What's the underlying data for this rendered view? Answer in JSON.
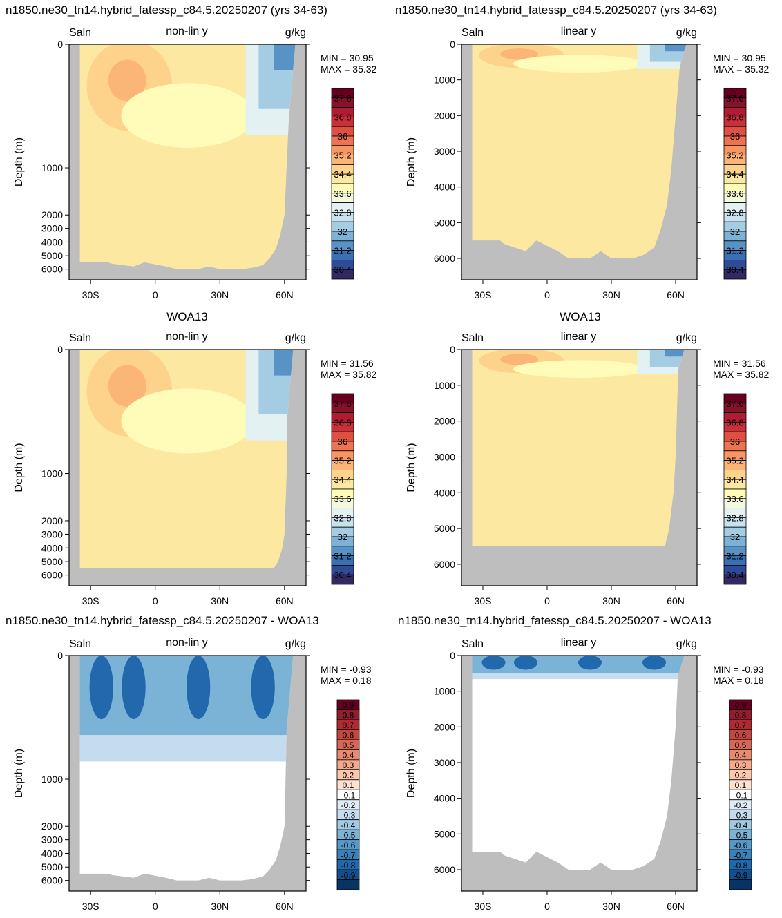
{
  "labels": {
    "variable": "Saln",
    "units": "g/kg",
    "ylabel": "Depth (m)",
    "min_prefix": "MIN =",
    "max_prefix": "MAX ="
  },
  "rows": [
    {
      "left_title": "n1850.ne30_tn14.hybrid_fatessp_c84.5.20250207 (yrs 34-63)",
      "right_title": "n1850.ne30_tn14.hybrid_fatessp_c84.5.20250207 (yrs 34-63)"
    },
    {
      "left_title": "",
      "right_title": "",
      "center_title": "WOA13"
    },
    {
      "left_title": "n1850.ne30_tn14.hybrid_fatessp_c84.5.20250207 - WOA13",
      "right_title": "n1850.ne30_tn14.hybrid_fatessp_c84.5.20250207 - WOA13"
    }
  ],
  "colors": {
    "land": "#bebebe",
    "abs_scale": [
      "#312a62",
      "#2f4b95",
      "#3a6fb1",
      "#5992c4",
      "#7db2d5",
      "#a4cce3",
      "#c8e2ee",
      "#e3f1f3",
      "#f4f9db",
      "#fffcb9",
      "#fde8a2",
      "#fdd28a",
      "#fbb677",
      "#f69763",
      "#ee7352",
      "#de5042",
      "#c9303a",
      "#b11c32",
      "#88112c",
      "#67001f"
    ],
    "diff_scale": [
      "#083465",
      "#134f8c",
      "#2268ad",
      "#3b81bb",
      "#5699c9",
      "#7bb3d7",
      "#a1cbe3",
      "#c4dcee",
      "#dfecf6",
      "#ffffff",
      "#fde2d1",
      "#fbc8ae",
      "#f5a98c",
      "#e78a70",
      "#d56757",
      "#c3473f",
      "#af2b31",
      "#901e2c",
      "#67001f"
    ]
  },
  "chart_data": [
    {
      "type": "heatmap",
      "panel": "model-nonlinear",
      "top_center_label": "non-lin y",
      "yscale": "non-linear",
      "x_ticks": [
        "30S",
        "0",
        "30N",
        "60N"
      ],
      "x_tick_values": [
        -30,
        0,
        30,
        60
      ],
      "y_ticks": [
        "0",
        "1000",
        "2000",
        "3000",
        "4000",
        "5000",
        "6000"
      ],
      "y_tick_values": [
        0,
        1000,
        2000,
        3000,
        4000,
        5000,
        6000
      ],
      "xlim": [
        -40,
        70
      ],
      "ylim": [
        0,
        6600
      ],
      "min_value": "30.95",
      "max_value": "35.32",
      "colorbar_labels": [
        "37.6",
        "36.8",
        "36",
        "35.2",
        "34.4",
        "33.6",
        "32.8",
        "32",
        "31.2",
        "30.4"
      ],
      "scale": "abs"
    },
    {
      "type": "heatmap",
      "panel": "model-linear",
      "top_center_label": "linear y",
      "yscale": "linear",
      "x_ticks": [
        "30S",
        "0",
        "30N",
        "60N"
      ],
      "x_tick_values": [
        -30,
        0,
        30,
        60
      ],
      "y_ticks": [
        "0",
        "1000",
        "2000",
        "3000",
        "4000",
        "5000",
        "6000"
      ],
      "y_tick_values": [
        0,
        1000,
        2000,
        3000,
        4000,
        5000,
        6000
      ],
      "xlim": [
        -40,
        70
      ],
      "ylim": [
        0,
        6600
      ],
      "min_value": "30.95",
      "max_value": "35.32",
      "colorbar_labels": [
        "37.6",
        "36.8",
        "36",
        "35.2",
        "34.4",
        "33.6",
        "32.8",
        "32",
        "31.2",
        "30.4"
      ],
      "scale": "abs"
    },
    {
      "type": "heatmap",
      "panel": "obs-nonlinear",
      "top_center_label": "non-lin y",
      "yscale": "non-linear",
      "x_ticks": [
        "30S",
        "0",
        "30N",
        "60N"
      ],
      "x_tick_values": [
        -30,
        0,
        30,
        60
      ],
      "y_ticks": [
        "0",
        "1000",
        "2000",
        "3000",
        "4000",
        "5000",
        "6000"
      ],
      "y_tick_values": [
        0,
        1000,
        2000,
        3000,
        4000,
        5000,
        6000
      ],
      "xlim": [
        -40,
        70
      ],
      "ylim": [
        0,
        6600
      ],
      "min_value": "31.56",
      "max_value": "35.82",
      "colorbar_labels": [
        "37.6",
        "36.8",
        "36",
        "35.2",
        "34.4",
        "33.6",
        "32.8",
        "32",
        "31.2",
        "30.4"
      ],
      "scale": "abs"
    },
    {
      "type": "heatmap",
      "panel": "obs-linear",
      "top_center_label": "linear y",
      "yscale": "linear",
      "x_ticks": [
        "30S",
        "0",
        "30N",
        "60N"
      ],
      "x_tick_values": [
        -30,
        0,
        30,
        60
      ],
      "y_ticks": [
        "0",
        "1000",
        "2000",
        "3000",
        "4000",
        "5000",
        "6000"
      ],
      "y_tick_values": [
        0,
        1000,
        2000,
        3000,
        4000,
        5000,
        6000
      ],
      "xlim": [
        -40,
        70
      ],
      "ylim": [
        0,
        6600
      ],
      "min_value": "31.56",
      "max_value": "35.82",
      "colorbar_labels": [
        "37.6",
        "36.8",
        "36",
        "35.2",
        "34.4",
        "33.6",
        "32.8",
        "32",
        "31.2",
        "30.4"
      ],
      "scale": "abs"
    },
    {
      "type": "heatmap",
      "panel": "diff-nonlinear",
      "top_center_label": "non-lin y",
      "yscale": "non-linear",
      "x_ticks": [
        "30S",
        "0",
        "30N",
        "60N"
      ],
      "x_tick_values": [
        -30,
        0,
        30,
        60
      ],
      "y_ticks": [
        "0",
        "1000",
        "2000",
        "3000",
        "4000",
        "5000",
        "6000"
      ],
      "y_tick_values": [
        0,
        1000,
        2000,
        3000,
        4000,
        5000,
        6000
      ],
      "xlim": [
        -40,
        70
      ],
      "ylim": [
        0,
        6600
      ],
      "min_value": "-0.93",
      "max_value": "0.18",
      "colorbar_labels": [
        "0.9",
        "0.8",
        "0.7",
        "0.6",
        "0.5",
        "0.4",
        "0.3",
        "0.2",
        "0.1",
        "-0.1",
        "-0.2",
        "-0.3",
        "-0.4",
        "-0.5",
        "-0.6",
        "-0.7",
        "-0.8",
        "-0.9"
      ],
      "scale": "diff"
    },
    {
      "type": "heatmap",
      "panel": "diff-linear",
      "top_center_label": "linear y",
      "yscale": "linear",
      "x_ticks": [
        "30S",
        "0",
        "30N",
        "60N"
      ],
      "x_tick_values": [
        -30,
        0,
        30,
        60
      ],
      "y_ticks": [
        "0",
        "1000",
        "2000",
        "3000",
        "4000",
        "5000",
        "6000"
      ],
      "y_tick_values": [
        0,
        1000,
        2000,
        3000,
        4000,
        5000,
        6000
      ],
      "xlim": [
        -40,
        70
      ],
      "ylim": [
        0,
        6600
      ],
      "min_value": "-0.93",
      "max_value": "0.18",
      "colorbar_labels": [
        "0.9",
        "0.8",
        "0.7",
        "0.6",
        "0.5",
        "0.4",
        "0.3",
        "0.2",
        "0.1",
        "-0.1",
        "-0.2",
        "-0.3",
        "-0.4",
        "-0.5",
        "-0.6",
        "-0.7",
        "-0.8",
        "-0.9"
      ],
      "scale": "diff"
    }
  ]
}
